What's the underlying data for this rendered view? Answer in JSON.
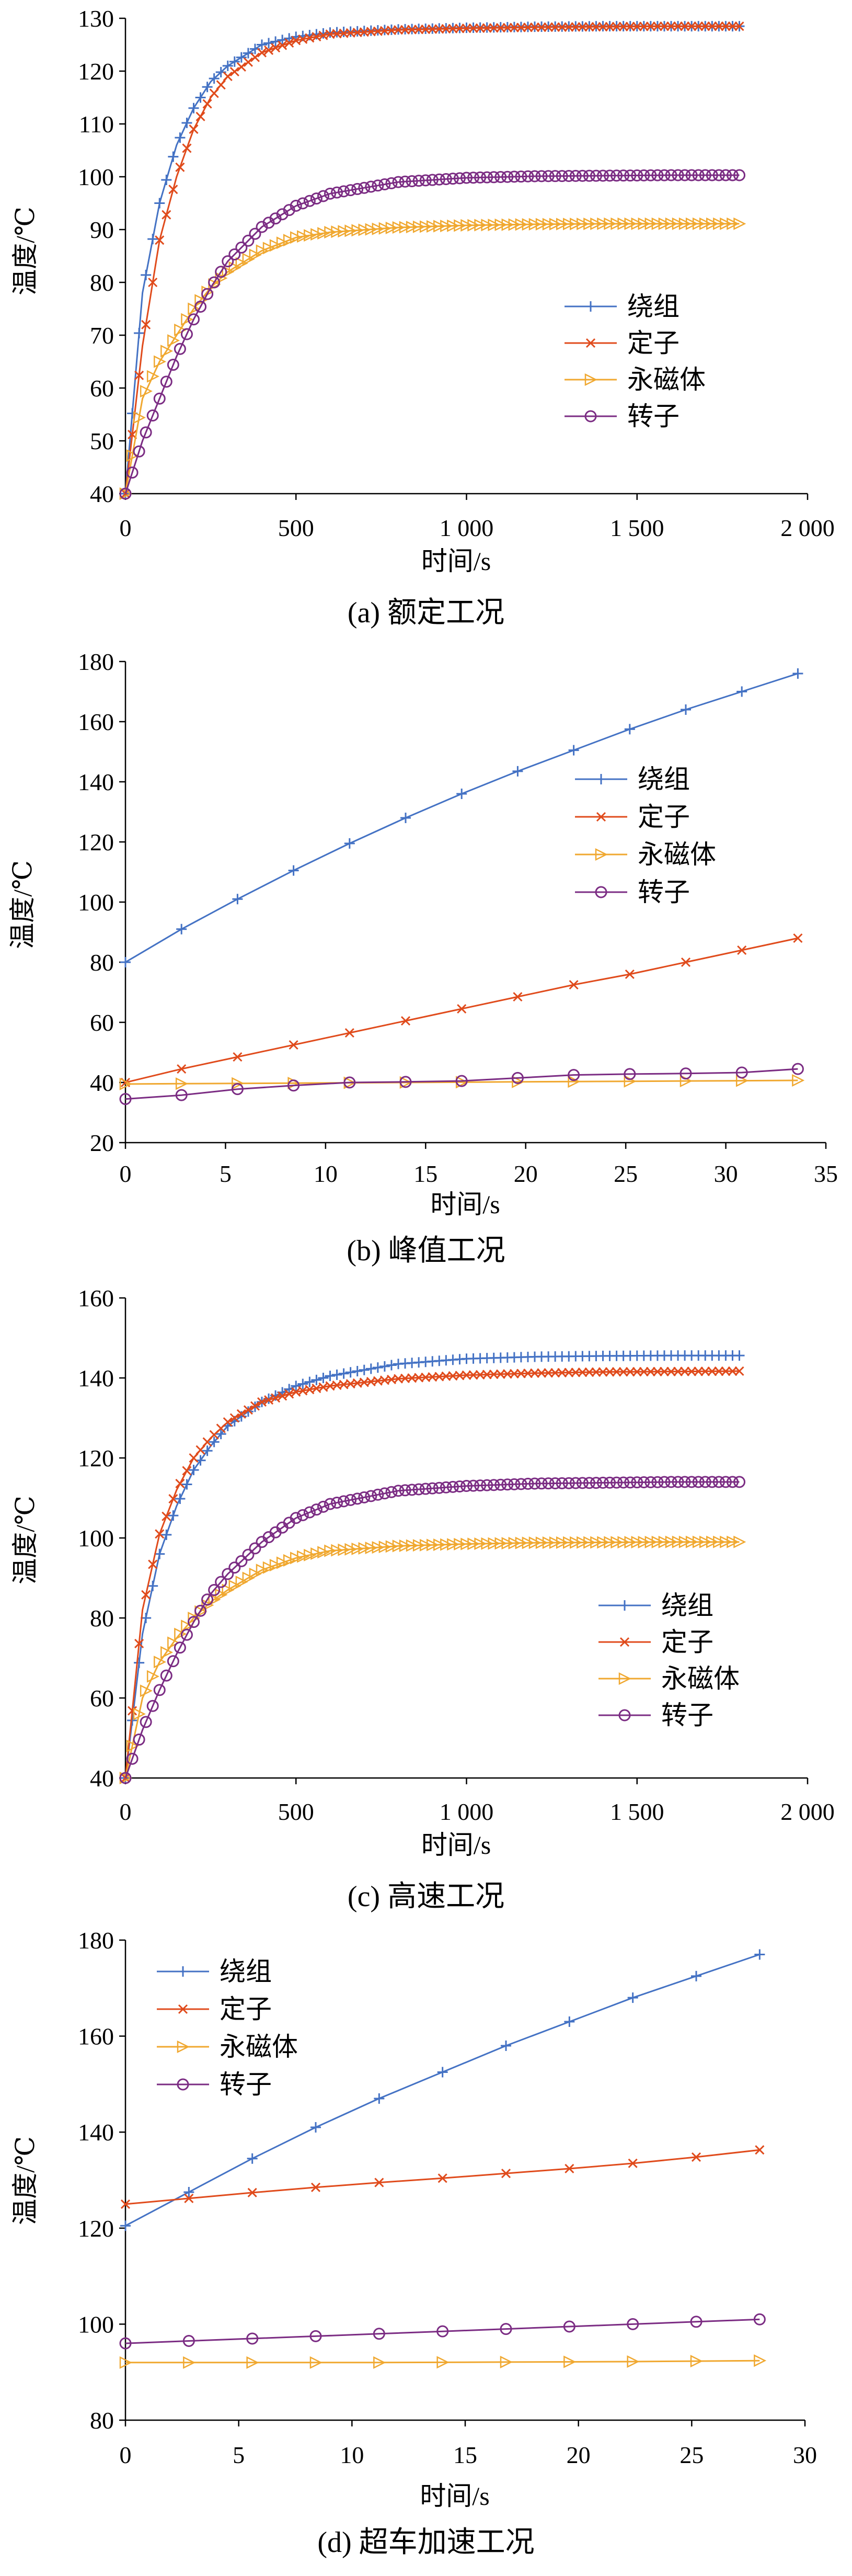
{
  "colors": {
    "winding": "#4472C4",
    "stator": "#E04B1C",
    "magnet": "#F0A830",
    "rotor": "#7B2C83"
  },
  "chart_data": [
    {
      "type": "line",
      "caption": "(a)  额定工况",
      "xlabel": "时间/s",
      "ylabel": "温度/℃",
      "xlim": [
        0,
        2000
      ],
      "ylim": [
        40,
        130
      ],
      "xticks": [
        0,
        500,
        1000,
        1500,
        2000
      ],
      "xtick_labels": [
        "0",
        "500",
        "1 000",
        "1 500",
        "2 000"
      ],
      "yticks": [
        40,
        50,
        60,
        70,
        80,
        90,
        100,
        110,
        120,
        130
      ],
      "legend_position": "center-right",
      "marker_interval": 20,
      "series": [
        {
          "name": "绕组",
          "marker": "plus",
          "color": "#4472C4",
          "x": [
            0,
            50,
            100,
            150,
            200,
            250,
            300,
            400,
            500,
            600,
            800,
            1000,
            1200,
            1400,
            1600,
            1800
          ],
          "y": [
            40,
            78,
            95,
            106,
            113,
            118,
            121,
            125,
            126.5,
            127.3,
            127.9,
            128.2,
            128.4,
            128.5,
            128.5,
            128.5
          ]
        },
        {
          "name": "定子",
          "marker": "x",
          "color": "#E04B1C",
          "x": [
            0,
            50,
            100,
            150,
            200,
            250,
            300,
            400,
            500,
            600,
            800,
            1000,
            1200,
            1400,
            1600,
            1800
          ],
          "y": [
            40,
            68,
            88,
            100,
            109,
            115,
            119,
            123.5,
            125.8,
            127,
            127.8,
            128.1,
            128.3,
            128.4,
            128.5,
            128.5
          ]
        },
        {
          "name": "永磁体",
          "marker": "triangle-right",
          "color": "#F0A830",
          "x": [
            0,
            50,
            100,
            150,
            200,
            250,
            300,
            400,
            500,
            600,
            800,
            1000,
            1200,
            1400,
            1600,
            1800
          ],
          "y": [
            40,
            58,
            65,
            70,
            75,
            79,
            82,
            86,
            88.5,
            89.5,
            90.4,
            90.8,
            91,
            91.1,
            91.1,
            91.1
          ]
        },
        {
          "name": "转子",
          "marker": "circle",
          "color": "#7B2C83",
          "x": [
            0,
            50,
            100,
            150,
            200,
            250,
            300,
            400,
            500,
            600,
            800,
            1000,
            1200,
            1400,
            1600,
            1800
          ],
          "y": [
            40,
            50,
            58,
            66,
            73,
            79,
            84,
            90.5,
            94.5,
            96.8,
            99,
            99.8,
            100.1,
            100.2,
            100.3,
            100.3
          ]
        }
      ]
    },
    {
      "type": "line",
      "caption": "(b)  峰值工况",
      "xlabel": "时间/s",
      "ylabel": "温度/℃",
      "xlim": [
        0,
        35
      ],
      "ylim": [
        20,
        180
      ],
      "xticks": [
        0,
        5,
        10,
        15,
        20,
        25,
        30,
        35
      ],
      "xtick_labels": [
        "0",
        "5",
        "10",
        "15",
        "20",
        "25",
        "30",
        "35"
      ],
      "yticks": [
        20,
        40,
        60,
        80,
        100,
        120,
        140,
        160,
        180
      ],
      "legend_position": "top-right",
      "marker_interval": 1,
      "series": [
        {
          "name": "绕组",
          "marker": "plus",
          "color": "#4472C4",
          "x": [
            0,
            2.8,
            5.6,
            8.4,
            11.2,
            14,
            16.8,
            19.6,
            22.4,
            25.2,
            28,
            30.8,
            33.6
          ],
          "y": [
            80,
            91,
            101,
            110.5,
            119.5,
            128,
            136,
            143.5,
            150.5,
            157.5,
            164,
            170,
            176
          ]
        },
        {
          "name": "定子",
          "marker": "x",
          "color": "#E04B1C",
          "x": [
            0,
            2.8,
            5.6,
            8.4,
            11.2,
            14,
            16.8,
            19.6,
            22.4,
            25.2,
            28,
            30.8,
            33.6
          ],
          "y": [
            40,
            44.5,
            48.5,
            52.5,
            56.5,
            60.5,
            64.5,
            68.5,
            72.5,
            76,
            80,
            84,
            88
          ]
        },
        {
          "name": "永磁体",
          "marker": "triangle-right",
          "color": "#F0A830",
          "x": [
            0,
            2.8,
            5.6,
            8.4,
            11.2,
            14,
            16.8,
            19.6,
            22.4,
            25.2,
            28,
            30.8,
            33.6
          ],
          "y": [
            39.5,
            39.6,
            39.7,
            39.8,
            39.9,
            40,
            40.1,
            40.2,
            40.3,
            40.4,
            40.5,
            40.6,
            40.7
          ]
        },
        {
          "name": "转子",
          "marker": "circle",
          "color": "#7B2C83",
          "x": [
            0,
            2.8,
            5.6,
            8.4,
            11.2,
            14,
            16.8,
            19.6,
            22.4,
            25.2,
            28,
            30.8,
            33.6
          ],
          "y": [
            34.5,
            35.8,
            37.8,
            39,
            40,
            40.2,
            40.5,
            41.5,
            42.5,
            42.8,
            43,
            43.3,
            44.5
          ]
        }
      ]
    },
    {
      "type": "line",
      "caption": "(c)  高速工况",
      "xlabel": "时间/s",
      "ylabel": "温度/℃",
      "xlim": [
        0,
        2000
      ],
      "ylim": [
        40,
        160
      ],
      "xticks": [
        0,
        500,
        1000,
        1500,
        2000
      ],
      "xtick_labels": [
        "0",
        "500",
        "1 000",
        "1 500",
        "2 000"
      ],
      "yticks": [
        40,
        60,
        80,
        100,
        120,
        140,
        160
      ],
      "legend_position": "center-right",
      "marker_interval": 20,
      "series": [
        {
          "name": "绕组",
          "marker": "plus",
          "color": "#4472C4",
          "x": [
            0,
            50,
            100,
            150,
            200,
            250,
            300,
            400,
            500,
            600,
            800,
            1000,
            1200,
            1400,
            1600,
            1800
          ],
          "y": [
            40,
            76,
            96,
            108,
            117,
            123,
            128,
            134,
            138,
            140.5,
            143.5,
            144.8,
            145.3,
            145.5,
            145.6,
            145.6
          ]
        },
        {
          "name": "定子",
          "marker": "x",
          "color": "#E04B1C",
          "x": [
            0,
            50,
            100,
            150,
            200,
            250,
            300,
            400,
            500,
            600,
            800,
            1000,
            1200,
            1400,
            1600,
            1800
          ],
          "y": [
            40,
            82,
            101,
            112,
            120,
            125,
            129,
            134,
            136.5,
            138,
            139.8,
            140.7,
            141.2,
            141.5,
            141.6,
            141.7
          ]
        },
        {
          "name": "永磁体",
          "marker": "triangle-right",
          "color": "#F0A830",
          "x": [
            0,
            50,
            100,
            150,
            200,
            250,
            300,
            400,
            500,
            600,
            800,
            1000,
            1200,
            1400,
            1600,
            1800
          ],
          "y": [
            40,
            60,
            69,
            75,
            80,
            84,
            87,
            92,
            95,
            96.8,
            98,
            98.5,
            98.8,
            98.9,
            99,
            99
          ]
        },
        {
          "name": "转子",
          "marker": "circle",
          "color": "#7B2C83",
          "x": [
            0,
            50,
            100,
            150,
            200,
            250,
            300,
            400,
            500,
            600,
            800,
            1000,
            1200,
            1400,
            1600,
            1800
          ],
          "y": [
            40,
            52,
            62,
            71,
            79,
            86,
            91,
            99,
            105,
            108.5,
            111.8,
            113,
            113.6,
            113.8,
            114,
            114
          ]
        }
      ]
    },
    {
      "type": "line",
      "caption": "(d)  超车加速工况",
      "xlabel": "时间/s",
      "ylabel": "温度/℃",
      "xlim": [
        0,
        30
      ],
      "ylim": [
        80,
        180
      ],
      "xticks": [
        0,
        5,
        10,
        15,
        20,
        25,
        30
      ],
      "xtick_labels": [
        "0",
        "5",
        "10",
        "15",
        "20",
        "25",
        "30"
      ],
      "yticks": [
        80,
        100,
        120,
        140,
        160,
        180
      ],
      "legend_position": "top-left",
      "marker_interval": 1,
      "series": [
        {
          "name": "绕组",
          "marker": "plus",
          "color": "#4472C4",
          "x": [
            0,
            2.8,
            5.6,
            8.4,
            11.2,
            14,
            16.8,
            19.6,
            22.4,
            25.2,
            28
          ],
          "y": [
            120.5,
            127.5,
            134.5,
            141,
            147,
            152.5,
            158,
            163,
            168,
            172.5,
            177
          ]
        },
        {
          "name": "定子",
          "marker": "x",
          "color": "#E04B1C",
          "x": [
            0,
            2.8,
            5.6,
            8.4,
            11.2,
            14,
            16.8,
            19.6,
            22.4,
            25.2,
            28
          ],
          "y": [
            125,
            126.2,
            127.4,
            128.5,
            129.5,
            130.4,
            131.4,
            132.4,
            133.5,
            134.8,
            136.3
          ]
        },
        {
          "name": "永磁体",
          "marker": "triangle-right",
          "color": "#F0A830",
          "x": [
            0,
            2.8,
            5.6,
            8.4,
            11.2,
            14,
            16.8,
            19.6,
            22.4,
            25.2,
            28
          ],
          "y": [
            92,
            92,
            92,
            92,
            92,
            92.05,
            92.1,
            92.15,
            92.2,
            92.3,
            92.4
          ]
        },
        {
          "name": "转子",
          "marker": "circle",
          "color": "#7B2C83",
          "x": [
            0,
            2.8,
            5.6,
            8.4,
            11.2,
            14,
            16.8,
            19.6,
            22.4,
            25.2,
            28
          ],
          "y": [
            96,
            96.5,
            97,
            97.5,
            98,
            98.5,
            99,
            99.5,
            100,
            100.5,
            101
          ]
        }
      ]
    }
  ]
}
